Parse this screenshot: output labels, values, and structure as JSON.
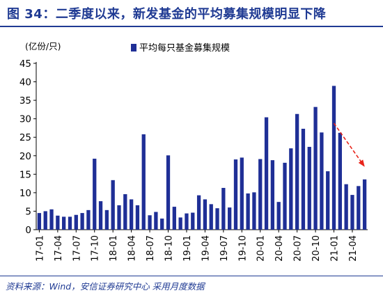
{
  "header": {
    "title": "图 34：二季度以来，新发基金的平均募集规模明显下降"
  },
  "footer": {
    "source": "资料来源：Wind，安信证券研究中心   采用月度数据"
  },
  "colors": {
    "bar": "#1f2f96",
    "arrow": "#e8251b",
    "axis": "#000000",
    "title": "#1f3a93"
  },
  "chart_data": {
    "type": "bar",
    "title": "",
    "ylabel": "(亿份/只)",
    "xlabel": "",
    "ylim": [
      0,
      45
    ],
    "yticks": [
      0,
      5,
      10,
      15,
      20,
      25,
      30,
      35,
      40,
      45
    ],
    "grid": false,
    "legend": {
      "position": "top",
      "entries": [
        "平均每只基金募集规模"
      ]
    },
    "tick_labels": [
      "17-01",
      "17-04",
      "17-07",
      "17-10",
      "18-01",
      "18-04",
      "18-07",
      "18-10",
      "19-01",
      "19-04",
      "19-07",
      "19-10",
      "20-01",
      "20-04",
      "20-07",
      "20-10",
      "21-01",
      "21-04"
    ],
    "categories": [
      "17-01",
      "17-02",
      "17-03",
      "17-04",
      "17-05",
      "17-06",
      "17-07",
      "17-08",
      "17-09",
      "17-10",
      "17-11",
      "17-12",
      "18-01",
      "18-02",
      "18-03",
      "18-04",
      "18-05",
      "18-06",
      "18-07",
      "18-08",
      "18-09",
      "18-10",
      "18-11",
      "18-12",
      "19-01",
      "19-02",
      "19-03",
      "19-04",
      "19-05",
      "19-06",
      "19-07",
      "19-08",
      "19-09",
      "19-10",
      "19-11",
      "19-12",
      "20-01",
      "20-02",
      "20-03",
      "20-04",
      "20-05",
      "20-06",
      "20-07",
      "20-08",
      "20-09",
      "20-10",
      "20-11",
      "20-12",
      "21-01",
      "21-02",
      "21-03",
      "21-04",
      "21-05",
      "21-06"
    ],
    "series": [
      {
        "name": "平均每只基金募集规模",
        "values": [
          4.5,
          5.0,
          5.5,
          3.8,
          3.5,
          3.5,
          4.0,
          4.5,
          5.3,
          19.2,
          7.7,
          5.3,
          13.4,
          6.6,
          9.6,
          8.2,
          6.6,
          25.8,
          3.9,
          4.8,
          3.0,
          20.1,
          6.2,
          3.3,
          4.4,
          4.6,
          9.3,
          8.2,
          6.9,
          5.8,
          11.3,
          6.0,
          19.0,
          19.5,
          9.8,
          10.1,
          19.1,
          30.4,
          18.8,
          7.5,
          18.1,
          22.0,
          31.3,
          27.3,
          22.4,
          33.2,
          26.3,
          15.8,
          38.9,
          26.2,
          12.3,
          9.4,
          11.8,
          13.6
        ]
      }
    ],
    "annotation": {
      "type": "arrow",
      "from_category": "21-01",
      "from_value": 28.8,
      "to_category": "21-06",
      "to_value": 17.3
    }
  }
}
